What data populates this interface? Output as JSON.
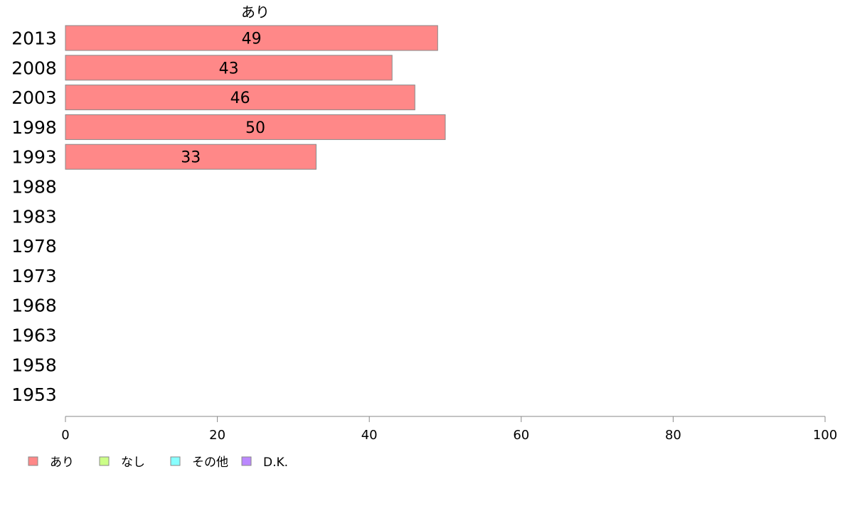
{
  "chart_data": {
    "type": "bar",
    "orientation": "horizontal",
    "stacked": true,
    "categories": [
      "2013",
      "2008",
      "2003",
      "1998",
      "1993",
      "1988",
      "1983",
      "1978",
      "1973",
      "1968",
      "1963",
      "1958",
      "1953"
    ],
    "series": [
      {
        "name": "あり",
        "color": "#ff8888",
        "values": [
          49,
          43,
          46,
          50,
          33,
          null,
          null,
          null,
          null,
          null,
          null,
          null,
          null
        ]
      },
      {
        "name": "なし",
        "color": "#ccff88",
        "values": [
          null,
          null,
          null,
          null,
          null,
          null,
          null,
          null,
          null,
          null,
          null,
          null,
          null
        ]
      },
      {
        "name": "その他",
        "color": "#88ffff",
        "values": [
          null,
          null,
          null,
          null,
          null,
          null,
          null,
          null,
          null,
          null,
          null,
          null,
          null
        ]
      },
      {
        "name": "D.K.",
        "color": "#bb88ff",
        "values": [
          null,
          null,
          null,
          null,
          null,
          null,
          null,
          null,
          null,
          null,
          null,
          null,
          null
        ]
      }
    ],
    "xlim": [
      0,
      100
    ],
    "xticks": [
      0,
      20,
      40,
      60,
      80,
      100
    ],
    "grid": false,
    "legend_position": "bottom-left",
    "series_title": "あり"
  }
}
